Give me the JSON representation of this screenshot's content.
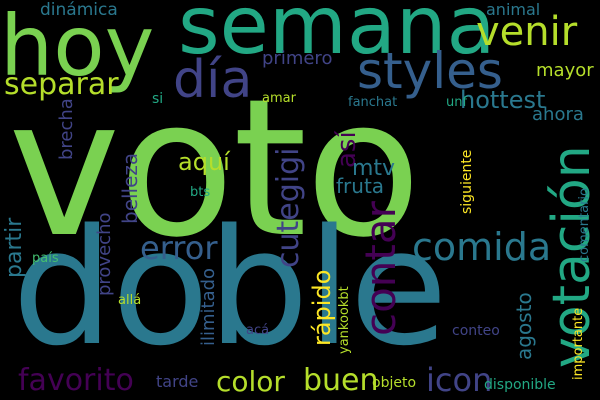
{
  "background": "#000000",
  "palette": {
    "lime": "#7ad151",
    "teal": "#2a788e",
    "green": "#22a884",
    "purple": "#440154",
    "indigo": "#414487",
    "yellow": "#fde725",
    "lightgreen": "#b5de2b",
    "slate": "#355f8d",
    "mint": "#44bf70"
  },
  "words": [
    {
      "text": "voto",
      "color": "#7ad151"
    },
    {
      "text": "doble",
      "color": "#2a788e"
    },
    {
      "text": "semana",
      "color": "#22a884"
    },
    {
      "text": "hoy",
      "color": "#7ad151"
    },
    {
      "text": "votación",
      "color": "#22a884"
    },
    {
      "text": "styles",
      "color": "#355f8d"
    },
    {
      "text": "día",
      "color": "#414487"
    },
    {
      "text": "venir",
      "color": "#b5de2b"
    },
    {
      "text": "separar",
      "color": "#b5de2b"
    },
    {
      "text": "contar",
      "color": "#440154"
    },
    {
      "text": "comida",
      "color": "#2a788e"
    },
    {
      "text": "cutegigi",
      "color": "#414487"
    },
    {
      "text": "error",
      "color": "#355f8d"
    },
    {
      "text": "favorito",
      "color": "#440154"
    },
    {
      "text": "color",
      "color": "#b5de2b"
    },
    {
      "text": "buen",
      "color": "#b5de2b"
    },
    {
      "text": "icon",
      "color": "#414487"
    },
    {
      "text": "hottest",
      "color": "#2a788e"
    },
    {
      "text": "primero",
      "color": "#414487"
    },
    {
      "text": "mayor",
      "color": "#b5de2b"
    },
    {
      "text": "ahora",
      "color": "#2a788e"
    },
    {
      "text": "aquí",
      "color": "#b5de2b"
    },
    {
      "text": "así",
      "color": "#440154"
    },
    {
      "text": "mtv",
      "color": "#2a788e"
    },
    {
      "text": "fruta",
      "color": "#2a788e"
    },
    {
      "text": "belleza",
      "color": "#414487"
    },
    {
      "text": "brecha",
      "color": "#414487"
    },
    {
      "text": "partir",
      "color": "#2a788e"
    },
    {
      "text": "provecho",
      "color": "#414487"
    },
    {
      "text": "rápido",
      "color": "#fde725"
    },
    {
      "text": "agosto",
      "color": "#2a788e"
    },
    {
      "text": "ilimitado",
      "color": "#355f8d"
    },
    {
      "text": "dinámica",
      "color": "#2a788e"
    },
    {
      "text": "animal",
      "color": "#2a788e"
    },
    {
      "text": "si",
      "color": "#22a884"
    },
    {
      "text": "amar",
      "color": "#b5de2b"
    },
    {
      "text": "fanchat",
      "color": "#2a788e"
    },
    {
      "text": "unf",
      "color": "#22a884"
    },
    {
      "text": "bts",
      "color": "#22a884"
    },
    {
      "text": "siguiente",
      "color": "#fde725"
    },
    {
      "text": "comentario",
      "color": "#2a788e"
    },
    {
      "text": "país",
      "color": "#44bf70"
    },
    {
      "text": "allá",
      "color": "#b5de2b"
    },
    {
      "text": "acá",
      "color": "#414487"
    },
    {
      "text": "tarde",
      "color": "#414487"
    },
    {
      "text": "yankookbt",
      "color": "#b5de2b"
    },
    {
      "text": "conteo",
      "color": "#414487"
    },
    {
      "text": "objeto",
      "color": "#b5de2b"
    },
    {
      "text": "disponible",
      "color": "#22a884"
    },
    {
      "text": "importante",
      "color": "#fde725"
    }
  ]
}
